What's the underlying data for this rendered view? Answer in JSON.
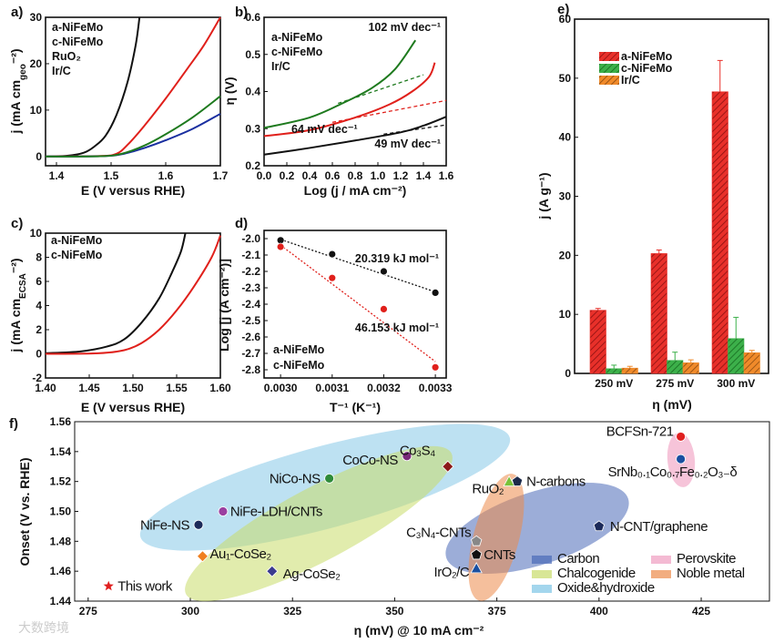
{
  "watermark": "大数跨境",
  "chart_data": [
    {
      "panel": "a)",
      "type": "line",
      "xlabel": "E (V versus RHE)",
      "ylabel": [
        "j (mA cm",
        "geo",
        "⁻²)"
      ],
      "xlim": [
        1.38,
        1.7
      ],
      "ylim": [
        -2,
        30
      ],
      "xticks": [
        "1.4",
        "1.5",
        "1.6",
        "1.7"
      ],
      "yticks": [
        "0",
        "10",
        "20",
        "30"
      ],
      "series": [
        {
          "name": "a-NiFeMo",
          "color": "#111111",
          "points": [
            [
              1.38,
              0
            ],
            [
              1.42,
              0.15
            ],
            [
              1.45,
              0.8
            ],
            [
              1.47,
              2.2
            ],
            [
              1.49,
              4.5
            ],
            [
              1.51,
              9
            ],
            [
              1.53,
              16
            ],
            [
              1.545,
              24
            ],
            [
              1.552,
              30
            ]
          ]
        },
        {
          "name": "c-NiFeMo",
          "color": "#e0201b",
          "points": [
            [
              1.38,
              0
            ],
            [
              1.48,
              0.1
            ],
            [
              1.51,
              0.6
            ],
            [
              1.53,
              2.5
            ],
            [
              1.56,
              6.5
            ],
            [
              1.6,
              12.5
            ],
            [
              1.64,
              19
            ],
            [
              1.67,
              24
            ],
            [
              1.7,
              30
            ]
          ]
        },
        {
          "name": "RuO₂",
          "color": "#1a2fa0",
          "points": [
            [
              1.38,
              0
            ],
            [
              1.48,
              0.05
            ],
            [
              1.52,
              0.5
            ],
            [
              1.56,
              1.8
            ],
            [
              1.6,
              3.5
            ],
            [
              1.65,
              6
            ],
            [
              1.7,
              9.2
            ]
          ]
        },
        {
          "name": "Ir/C",
          "color": "#1e7a1e",
          "points": [
            [
              1.38,
              0
            ],
            [
              1.48,
              0.05
            ],
            [
              1.52,
              0.6
            ],
            [
              1.56,
              2.3
            ],
            [
              1.6,
              4.8
            ],
            [
              1.65,
              8.5
            ],
            [
              1.7,
              13
            ]
          ]
        }
      ]
    },
    {
      "panel": "b)",
      "type": "line",
      "xlabel": "Log (j / mA cm⁻²)",
      "ylabel": [
        "η (V)"
      ],
      "xlim": [
        0,
        1.6
      ],
      "ylim": [
        0.2,
        0.6
      ],
      "xticks": [
        "0.0",
        "0.2",
        "0.4",
        "0.6",
        "0.8",
        "1.0",
        "1.2",
        "1.4",
        "1.6"
      ],
      "yticks": [
        "0.2",
        "0.3",
        "0.4",
        "0.5",
        "0.6"
      ],
      "series": [
        {
          "name": "a-NiFeMo",
          "color": "#111111",
          "points": [
            [
              0,
              0.23
            ],
            [
              0.4,
              0.248
            ],
            [
              0.8,
              0.268
            ],
            [
              1.2,
              0.29
            ],
            [
              1.4,
              0.308
            ],
            [
              1.6,
              0.332
            ]
          ]
        },
        {
          "name": "c-NiFeMo",
          "color": "#e0201b",
          "points": [
            [
              0,
              0.28
            ],
            [
              0.4,
              0.296
            ],
            [
              0.8,
              0.33
            ],
            [
              1.1,
              0.365
            ],
            [
              1.3,
              0.4
            ],
            [
              1.45,
              0.44
            ],
            [
              1.5,
              0.478
            ]
          ]
        },
        {
          "name": "Ir/C",
          "color": "#1e7a1e",
          "points": [
            [
              0,
              0.302
            ],
            [
              0.4,
              0.33
            ],
            [
              0.7,
              0.37
            ],
            [
              0.95,
              0.41
            ],
            [
              1.15,
              0.46
            ],
            [
              1.33,
              0.538
            ]
          ]
        }
      ],
      "fits": [
        {
          "color": "#111111",
          "points": [
            [
              1.05,
              0.285
            ],
            [
              1.6,
              0.31
            ]
          ],
          "label": "49 mV dec⁻¹"
        },
        {
          "color": "#e0201b",
          "points": [
            [
              0.6,
              0.317
            ],
            [
              1.6,
              0.376
            ]
          ],
          "label": "64 mV dec⁻¹"
        },
        {
          "color": "#1e7a1e",
          "points": [
            [
              0.65,
              0.368
            ],
            [
              1.4,
              0.445
            ]
          ],
          "label": "102 mV dec⁻¹"
        }
      ]
    },
    {
      "panel": "c)",
      "type": "line",
      "xlabel": "E (V versus RHE)",
      "ylabel": [
        "j (mA cm",
        "ECSA",
        "⁻²)"
      ],
      "xlim": [
        1.4,
        1.6
      ],
      "ylim": [
        -2,
        10
      ],
      "xticks": [
        "1.40",
        "1.45",
        "1.50",
        "1.55",
        "1.60"
      ],
      "yticks": [
        "-2",
        "0",
        "2",
        "4",
        "6",
        "8",
        "10"
      ],
      "series": [
        {
          "name": "a-NiFeMo",
          "color": "#111111",
          "points": [
            [
              1.4,
              0.05
            ],
            [
              1.44,
              0.2
            ],
            [
              1.47,
              0.6
            ],
            [
              1.49,
              1.2
            ],
            [
              1.51,
              2.6
            ],
            [
              1.53,
              4.6
            ],
            [
              1.545,
              6.8
            ],
            [
              1.555,
              8.5
            ],
            [
              1.56,
              10
            ]
          ]
        },
        {
          "name": "c-NiFeMo",
          "color": "#e0201b",
          "points": [
            [
              1.4,
              0
            ],
            [
              1.46,
              0.05
            ],
            [
              1.49,
              0.3
            ],
            [
              1.51,
              0.9
            ],
            [
              1.53,
              2
            ],
            [
              1.55,
              3.6
            ],
            [
              1.57,
              5.6
            ],
            [
              1.59,
              8
            ],
            [
              1.6,
              9.8
            ]
          ]
        }
      ]
    },
    {
      "panel": "d)",
      "type": "scatter",
      "xlabel": "T⁻¹ (K⁻¹)",
      "ylabel": [
        "Log [j (A cm⁻²)]"
      ],
      "xlim": [
        0.002968,
        0.003321
      ],
      "ylim": [
        -2.85,
        -1.95
      ],
      "xticks": [
        "0.0030",
        "0.0031",
        "0.0032",
        "0.0033"
      ],
      "yticks": [
        "-2.0",
        "-2.1",
        "-2.2",
        "-2.3",
        "-2.4",
        "-2.5",
        "-2.6",
        "-2.7",
        "-2.8"
      ],
      "series": [
        {
          "name": "a-NiFeMo",
          "color": "#111111",
          "points": [
            [
              0.003,
              -2.01
            ],
            [
              0.0031,
              -2.095
            ],
            [
              0.0032,
              -2.2
            ],
            [
              0.0033,
              -2.33
            ]
          ],
          "fit": [
            [
              0.003,
              -2.005
            ],
            [
              0.0033,
              -2.325
            ]
          ],
          "label": "20.319 kJ mol⁻¹"
        },
        {
          "name": "c-NiFeMo",
          "color": "#e0201b",
          "points": [
            [
              0.003,
              -2.05
            ],
            [
              0.0031,
              -2.24
            ],
            [
              0.0032,
              -2.43
            ],
            [
              0.0033,
              -2.785
            ]
          ],
          "fit": [
            [
              0.003,
              -2.04
            ],
            [
              0.0033,
              -2.75
            ]
          ],
          "label": "46.153 kJ mol⁻¹"
        }
      ]
    },
    {
      "panel": "e)",
      "type": "bar",
      "xlabel": "η (mV)",
      "ylabel": [
        "j (A g⁻¹)"
      ],
      "ylim": [
        0,
        60
      ],
      "categories": [
        "250 mV",
        "275 mV",
        "300 mV"
      ],
      "yticks": [
        "0",
        "10",
        "20",
        "30",
        "40",
        "50",
        "60"
      ],
      "series": [
        {
          "name": "a-NiFeMo",
          "color": "#e8302a",
          "values": [
            10.7,
            20.3,
            47.7
          ],
          "errors": [
            0.3,
            0.6,
            5.3
          ]
        },
        {
          "name": "c-NiFeMo",
          "color": "#3cb04a",
          "values": [
            0.8,
            2.2,
            5.9
          ],
          "errors": [
            0.6,
            1.4,
            3.6
          ]
        },
        {
          "name": "Ir/C",
          "color": "#f08a2a",
          "values": [
            0.9,
            1.8,
            3.5
          ],
          "errors": [
            0.3,
            0.5,
            0.4
          ]
        }
      ]
    },
    {
      "panel": "f)",
      "type": "scatter",
      "xlabel": "η (mV) @ 10 mA cm⁻²",
      "ylabel": [
        "Onset (V vs. RHE)"
      ],
      "xlim": [
        271.7,
        441.7
      ],
      "ylim": [
        1.44,
        1.56
      ],
      "xticks": [
        "275",
        "300",
        "325",
        "350",
        "375",
        "400",
        "425"
      ],
      "yticks": [
        "1.44",
        "1.46",
        "1.48",
        "1.50",
        "1.52",
        "1.54",
        "1.56"
      ],
      "points": [
        {
          "label": "This work",
          "x": 280,
          "y": 1.45,
          "marker": "star",
          "color": "#e02020"
        },
        {
          "label": "NiFe-NS",
          "x": 302,
          "y": 1.491,
          "marker": "circle",
          "color": "#1c2a5a"
        },
        {
          "label": "NiFe-LDH/CNTs",
          "x": 308,
          "y": 1.5,
          "marker": "circle",
          "color": "#9b3fa0"
        },
        {
          "label": "Au₁-CoSe₂",
          "x": 303,
          "y": 1.47,
          "marker": "diamond",
          "color": "#f07f20"
        },
        {
          "label": "Ag-CoSe₂",
          "x": 320,
          "y": 1.46,
          "marker": "diamond",
          "color": "#3b3b8f"
        },
        {
          "label": "NiCo-NS",
          "x": 334,
          "y": 1.522,
          "marker": "circle",
          "color": "#2e8b3a"
        },
        {
          "label": "CoCo-NS",
          "x": 353,
          "y": 1.537,
          "marker": "circle",
          "color": "#7a2a7a"
        },
        {
          "label": "Co₃S₄",
          "x": 363,
          "y": 1.53,
          "marker": "diamond",
          "color": "#8b1a1a"
        },
        {
          "label": "RuO₂",
          "x": 378,
          "y": 1.52,
          "marker": "triangle",
          "color": "#7ac23a"
        },
        {
          "label": "N-carbons",
          "x": 380,
          "y": 1.52,
          "marker": "pentagon",
          "color": "#1c2a4a"
        },
        {
          "label": "C₃N₄-CNTs",
          "x": 370,
          "y": 1.48,
          "marker": "pentagon",
          "color": "#888888"
        },
        {
          "label": "CNTs",
          "x": 370,
          "y": 1.471,
          "marker": "pentagon",
          "color": "#111111"
        },
        {
          "label": "IrO₂/C",
          "x": 370,
          "y": 1.462,
          "marker": "triangle",
          "color": "#1a4fa0"
        },
        {
          "label": "N-CNT/graphene",
          "x": 400,
          "y": 1.49,
          "marker": "pentagon",
          "color": "#1c2a5a"
        },
        {
          "label": "BCFSn-721",
          "x": 420,
          "y": 1.55,
          "marker": "circle",
          "color": "#e02020"
        },
        {
          "label": "SrNb₀.₁Co₀.₇Fe₀.₂O₃₋δ",
          "x": 420,
          "y": 1.535,
          "marker": "circle",
          "color": "#1a4fa0"
        }
      ],
      "groups": [
        {
          "name": "Carbon",
          "color": "#4a6ab8"
        },
        {
          "name": "Chalcogenide",
          "color": "#c8dc6a"
        },
        {
          "name": "Oxide&hydroxide",
          "color": "#7cc4e6"
        },
        {
          "name": "Perovskite",
          "color": "#f09cc0"
        },
        {
          "name": "Noble metal",
          "color": "#ec8a4a"
        }
      ]
    }
  ]
}
